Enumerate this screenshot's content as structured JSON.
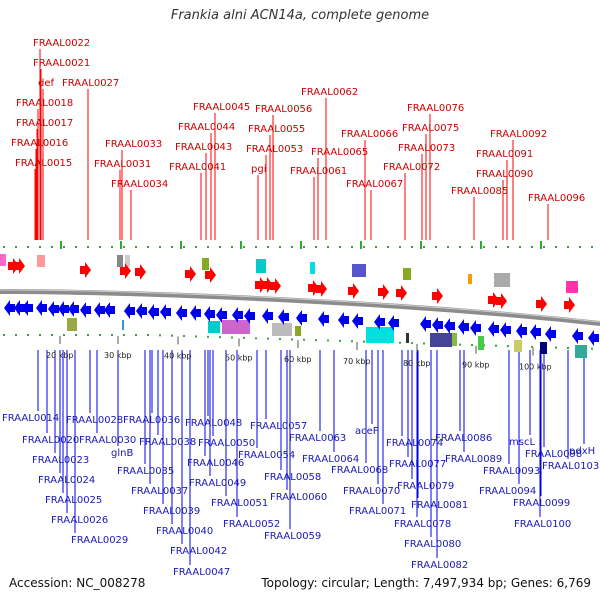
{
  "title": "Frankia alni ACN14a, complete genome",
  "footer": {
    "accession": "Accession: NC_008278",
    "summary": "Topology: circular; Length: 7,497,934 bp; Genes: 6,769"
  },
  "colors": {
    "forward": "#ff0000",
    "reverse": "#0000ee",
    "forward_label": "#cc0000",
    "reverse_label": "#1a1ab4",
    "backbone": "#888888"
  },
  "scale": {
    "ticks": [
      {
        "label": "20 kbp",
        "kbp": 20
      },
      {
        "label": "30 kbp",
        "kbp": 30
      },
      {
        "label": "40 kbp",
        "kbp": 40
      },
      {
        "label": "50 kbp",
        "kbp": 50
      },
      {
        "label": "60 kbp",
        "kbp": 60
      },
      {
        "label": "70 kbp",
        "kbp": 70
      },
      {
        "label": "80 kbp",
        "kbp": 80
      },
      {
        "label": "90 kbp",
        "kbp": 90
      },
      {
        "label": "100 kbp",
        "kbp": 100
      }
    ]
  },
  "forward_genes": [
    {
      "name": "FRAAL0022"
    },
    {
      "name": "FRAAL0021"
    },
    {
      "name": "def"
    },
    {
      "name": "FRAAL0027"
    },
    {
      "name": "FRAAL0018"
    },
    {
      "name": "FRAAL0017"
    },
    {
      "name": "FRAAL0016"
    },
    {
      "name": "FRAAL0015"
    },
    {
      "name": "FRAAL0033"
    },
    {
      "name": "FRAAL0031"
    },
    {
      "name": "FRAAL0034"
    },
    {
      "name": "FRAAL0045"
    },
    {
      "name": "FRAAL0044"
    },
    {
      "name": "FRAAL0043"
    },
    {
      "name": "FRAAL0041"
    },
    {
      "name": "FRAAL0056"
    },
    {
      "name": "FRAAL0055"
    },
    {
      "name": "FRAAL0053"
    },
    {
      "name": "pgi"
    },
    {
      "name": "FRAAL0062"
    },
    {
      "name": "FRAAL0065"
    },
    {
      "name": "FRAAL0061"
    },
    {
      "name": "FRAAL0066"
    },
    {
      "name": "FRAAL0067"
    },
    {
      "name": "FRAAL0076"
    },
    {
      "name": "FRAAL0075"
    },
    {
      "name": "FRAAL0073"
    },
    {
      "name": "FRAAL0072"
    },
    {
      "name": "FRAAL0092"
    },
    {
      "name": "FRAAL0091"
    },
    {
      "name": "FRAAL0090"
    },
    {
      "name": "FRAAL0085"
    },
    {
      "name": "FRAAL0096"
    }
  ],
  "reverse_genes": [
    {
      "name": "FRAAL0014"
    },
    {
      "name": "FRAAL0020"
    },
    {
      "name": "FRAAL0023"
    },
    {
      "name": "FRAAL0024"
    },
    {
      "name": "FRAAL0025"
    },
    {
      "name": "FRAAL0026"
    },
    {
      "name": "FRAAL0029"
    },
    {
      "name": "FRAAL0028"
    },
    {
      "name": "FRAAL0030"
    },
    {
      "name": "glnB"
    },
    {
      "name": "FRAAL0036"
    },
    {
      "name": "FRAAL0038"
    },
    {
      "name": "FRAAL0035"
    },
    {
      "name": "FRAAL0037"
    },
    {
      "name": "FRAAL0039"
    },
    {
      "name": "FRAAL0040"
    },
    {
      "name": "FRAAL0042"
    },
    {
      "name": "FRAAL0047"
    },
    {
      "name": "FRAAL0048"
    },
    {
      "name": "FRAAL0050"
    },
    {
      "name": "FRAAL0046"
    },
    {
      "name": "FRAAL0049"
    },
    {
      "name": "FRAAL0051"
    },
    {
      "name": "FRAAL0052"
    },
    {
      "name": "FRAAL0057"
    },
    {
      "name": "FRAAL0054"
    },
    {
      "name": "FRAAL0058"
    },
    {
      "name": "FRAAL0060"
    },
    {
      "name": "FRAAL0059"
    },
    {
      "name": "FRAAL0063"
    },
    {
      "name": "FRAAL0064"
    },
    {
      "name": "aceF"
    },
    {
      "name": "FRAAL0068"
    },
    {
      "name": "FRAAL0070"
    },
    {
      "name": "FRAAL0071"
    },
    {
      "name": "FRAAL0074"
    },
    {
      "name": "FRAAL0077"
    },
    {
      "name": "FRAAL0079"
    },
    {
      "name": "FRAAL0081"
    },
    {
      "name": "FRAAL0078"
    },
    {
      "name": "FRAAL0080"
    },
    {
      "name": "FRAAL0082"
    },
    {
      "name": "FRAAL0086"
    },
    {
      "name": "FRAAL0089"
    },
    {
      "name": "FRAAL0093"
    },
    {
      "name": "mscL"
    },
    {
      "name": "FRAAL0094"
    },
    {
      "name": "FRAAL0098"
    },
    {
      "name": "FRAAL0099"
    },
    {
      "name": "FRAAL0100"
    },
    {
      "name": "pdxH"
    },
    {
      "name": "FRAAL0103"
    }
  ]
}
